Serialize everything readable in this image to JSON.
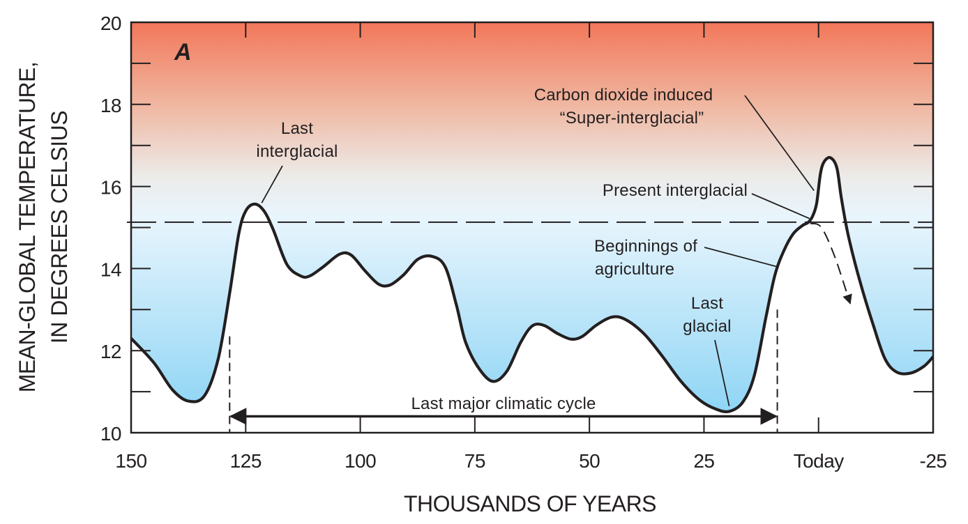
{
  "chart_data": {
    "type": "line",
    "panel_label": "A",
    "xlabel": "THOUSANDS OF YEARS",
    "ylabel_line1": "MEAN-GLOBAL TEMPERATURE,",
    "ylabel_line2": "IN DEGREES CELSIUS",
    "xlim": [
      150,
      -25
    ],
    "ylim": [
      10,
      20
    ],
    "x_ticks": [
      {
        "value": 150,
        "label": "150"
      },
      {
        "value": 125,
        "label": "125"
      },
      {
        "value": 100,
        "label": "100"
      },
      {
        "value": 75,
        "label": "75"
      },
      {
        "value": 50,
        "label": "50"
      },
      {
        "value": 25,
        "label": "25"
      },
      {
        "value": 0,
        "label": "Today"
      },
      {
        "value": -25,
        "label": "-25"
      }
    ],
    "y_ticks": [
      {
        "value": 10,
        "label": "10"
      },
      {
        "value": 12,
        "label": "12"
      },
      {
        "value": 14,
        "label": "14"
      },
      {
        "value": 16,
        "label": "16"
      },
      {
        "value": 18,
        "label": "18"
      },
      {
        "value": 20,
        "label": "20"
      }
    ],
    "y_minor_step": 1,
    "reference_line": {
      "value": 15.13,
      "style": "dashed"
    },
    "series": [
      {
        "name": "Mean-global temperature",
        "x": [
          150,
          145,
          141,
          137.5,
          134,
          131,
          128.5,
          126.5,
          125,
          123,
          121,
          119,
          116,
          113,
          111,
          108,
          104.5,
          102,
          99,
          96,
          93.5,
          90.5,
          87.5,
          84.5,
          81.5,
          79,
          77,
          74,
          71,
          68,
          65,
          62.5,
          60,
          57,
          54,
          51.5,
          48.5,
          45,
          42,
          38,
          34,
          30,
          26,
          22.5,
          19.5,
          16.5,
          14,
          11.5,
          9.5,
          7.5,
          5.5,
          3.5,
          2.2,
          1.2,
          0.4,
          -0.4,
          -1.2,
          -2.6,
          -4,
          -5,
          -6.5,
          -9,
          -12,
          -14.5,
          -17,
          -20,
          -23,
          -25
        ],
        "y": [
          12.3,
          11.7,
          11.05,
          10.77,
          10.9,
          11.8,
          13.4,
          14.85,
          15.4,
          15.57,
          15.4,
          14.95,
          14.1,
          13.82,
          13.82,
          14.05,
          14.35,
          14.33,
          13.95,
          13.62,
          13.6,
          13.85,
          14.22,
          14.3,
          14.05,
          13.1,
          12.2,
          11.55,
          11.25,
          11.5,
          12.2,
          12.6,
          12.62,
          12.42,
          12.28,
          12.35,
          12.62,
          12.82,
          12.75,
          12.4,
          11.85,
          11.25,
          10.8,
          10.58,
          10.52,
          10.75,
          11.4,
          12.8,
          13.85,
          14.45,
          14.85,
          15.05,
          15.13,
          15.3,
          15.6,
          16.3,
          16.6,
          16.7,
          16.45,
          15.7,
          14.8,
          13.7,
          12.6,
          11.8,
          11.48,
          11.45,
          11.62,
          11.85
        ]
      }
    ],
    "projection": {
      "name": "Projected decline without CO2 increase",
      "style": "dashed-arrow",
      "x": [
        1.8,
        -0.6,
        -3.5,
        -6.9
      ],
      "y": [
        15.1,
        15.0,
        14.3,
        13.15
      ]
    },
    "cycle_bracket": {
      "label": "Last major climatic cycle",
      "x_start": 128.5,
      "x_end": 9,
      "y": 10.4,
      "guide_top_left": 12.35,
      "guide_top_right": 13.0
    },
    "annotations": [
      {
        "id": "last-interglacial",
        "lines": [
          "Last",
          "interglacial"
        ],
        "target_x": 121.5,
        "target_y": 15.6
      },
      {
        "id": "co2-super-interglacial",
        "lines": [
          "Carbon dioxide induced",
          "“Super-interglacial”"
        ],
        "target_x": 1.0,
        "target_y": 15.9
      },
      {
        "id": "present-interglacial",
        "lines": [
          "Present interglacial"
        ],
        "target_x": 2.0,
        "target_y": 15.22
      },
      {
        "id": "beginnings-of-agriculture",
        "lines": [
          "Beginnings of",
          "agriculture"
        ],
        "target_x": 9.2,
        "target_y": 14.05
      },
      {
        "id": "last-glacial",
        "lines": [
          "Last",
          "glacial"
        ],
        "target_x": 19.5,
        "target_y": 10.65
      }
    ],
    "colors": {
      "top": "#f2775a",
      "upper_mid": "#f0b39c",
      "middle": "#ececea",
      "lower_mid": "#e8f5fd",
      "bottom": "#8fd5f5",
      "line": "#231f20"
    }
  }
}
